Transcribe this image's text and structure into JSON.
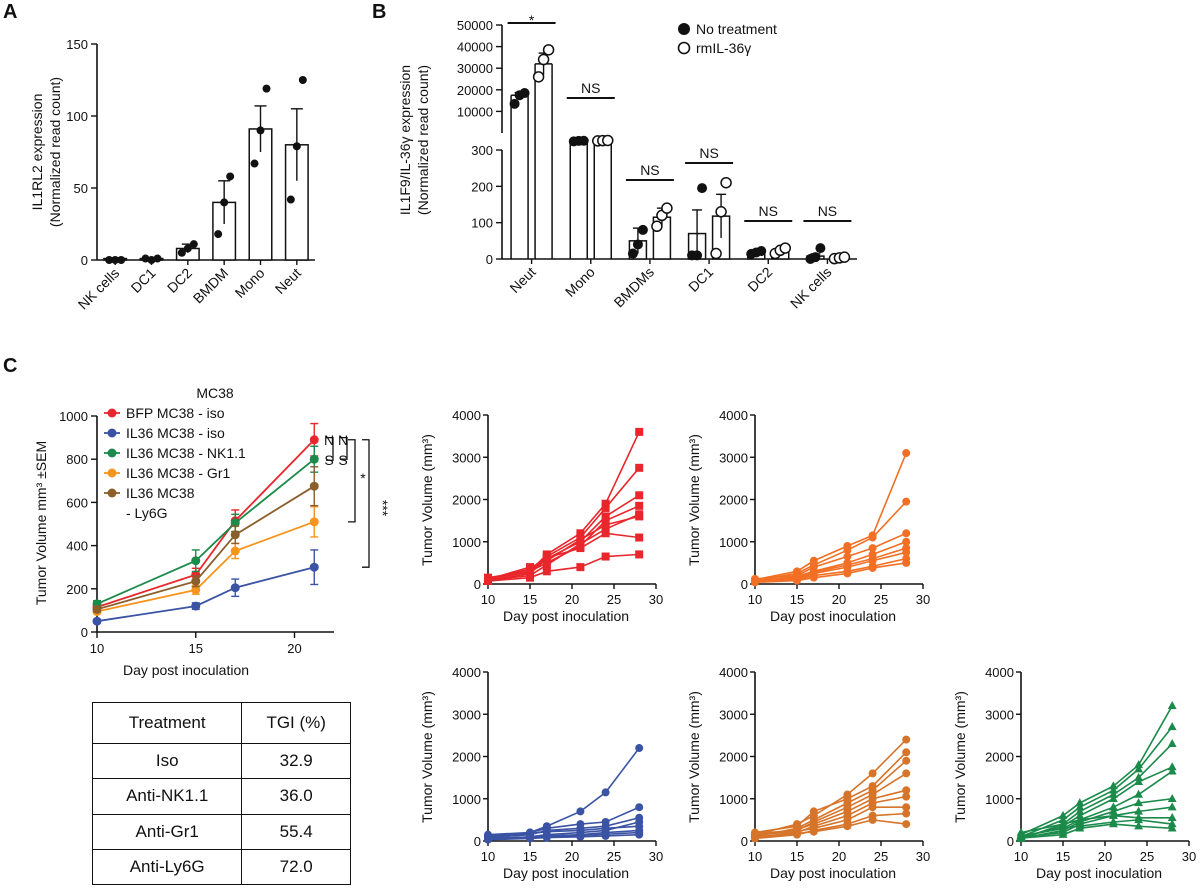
{
  "panels": {
    "a": "A",
    "b": "B",
    "c": "C"
  },
  "chart_data": [
    {
      "id": "A",
      "type": "bar",
      "ylabel": "IL1RL2 expression\n(Normalized read count)",
      "categories": [
        "NK cells",
        "DC1",
        "DC2",
        "BMDM",
        "Mono",
        "Neut"
      ],
      "values": [
        1,
        1,
        8,
        40,
        91,
        80
      ],
      "errors": [
        0.5,
        0.5,
        3,
        15,
        16,
        25
      ],
      "points": [
        [
          0,
          0,
          0
        ],
        [
          1,
          0,
          1
        ],
        [
          5,
          8,
          11
        ],
        [
          18,
          40,
          58
        ],
        [
          67,
          90,
          119
        ],
        [
          42,
          79,
          125
        ]
      ],
      "ylim": [
        0,
        150
      ],
      "yticks": [
        0,
        50,
        100,
        150
      ]
    },
    {
      "id": "B",
      "type": "bar",
      "ylabel": "IL1F9/IL-36γ expression\n(Normalized read count)",
      "categories": [
        "Neut",
        "Mono",
        "BMDMs",
        "DC1",
        "DC2",
        "NK cells"
      ],
      "legend": [
        "No treatment",
        "rmIL-36γ"
      ],
      "series": [
        {
          "values": [
            17500,
            4800,
            50,
            70,
            18,
            8
          ],
          "errors": [
            1200,
            300,
            35,
            65,
            4,
            6
          ],
          "points": [
            [
              13500,
              17500,
              18500
            ],
            [
              2600,
              4800,
              4900
            ],
            [
              15,
              40,
              80
            ],
            [
              10,
              10,
              195
            ],
            [
              14,
              18,
              22
            ],
            [
              0,
              5,
              30
            ]
          ]
        },
        {
          "values": [
            32000,
            5300,
            115,
            118,
            22,
            3
          ],
          "errors": [
            5000,
            700,
            25,
            60,
            5,
            2
          ],
          "points": [
            [
              26000,
              34000,
              38500
            ],
            [
              4500,
              5500,
              6200
            ],
            [
              90,
              120,
              140
            ],
            [
              15,
              130,
              210
            ],
            [
              15,
              24,
              30
            ],
            [
              1,
              3,
              5
            ]
          ]
        }
      ],
      "significance": [
        "*",
        "NS",
        "NS",
        "NS",
        "NS",
        "NS"
      ],
      "yticks_low": [
        0,
        100,
        200,
        300
      ],
      "yticks_high": [
        10000,
        20000,
        30000,
        40000,
        50000
      ]
    },
    {
      "id": "C-summary",
      "type": "line",
      "title": "MC38",
      "xlabel": "Day post inoculation",
      "ylabel": "Tumor Volume mm³  ±SEM",
      "x": [
        10,
        15,
        17,
        21
      ],
      "xticks": [
        10,
        15,
        20
      ],
      "yticks": [
        0,
        200,
        400,
        600,
        800,
        1000
      ],
      "xlim": [
        10,
        22
      ],
      "ylim": [
        0,
        1000
      ],
      "series": [
        {
          "name": "BFP MC38 - iso",
          "color": "#e8262b",
          "values": [
            115,
            265,
            515,
            890
          ],
          "errors": [
            15,
            30,
            50,
            75
          ]
        },
        {
          "name": "IL36 MC38 - iso",
          "color": "#3a53a4",
          "values": [
            50,
            120,
            205,
            300
          ],
          "errors": [
            8,
            15,
            40,
            80
          ]
        },
        {
          "name": "IL36 MC38 - NK1.1",
          "color": "#1b8a4a",
          "values": [
            130,
            330,
            505,
            800
          ],
          "errors": [
            15,
            50,
            40,
            60
          ]
        },
        {
          "name": "IL36 MC38 - Gr1",
          "color": "#f7941d",
          "values": [
            95,
            195,
            375,
            510
          ],
          "errors": [
            10,
            20,
            35,
            70
          ]
        },
        {
          "name": "IL36 MC38\n- Ly6G",
          "color": "#8b5e2b",
          "values": [
            105,
            235,
            450,
            675
          ],
          "errors": [
            12,
            25,
            40,
            90
          ]
        }
      ],
      "significance": [
        "NS",
        "NS",
        "*",
        "***"
      ]
    },
    {
      "id": "C-individual",
      "type": "line",
      "xlabel": "Day post inoculation",
      "ylabel": "Tumor Volume (mm³)",
      "xticks": [
        10,
        15,
        20,
        25,
        30
      ],
      "yticks": [
        0,
        1000,
        2000,
        3000,
        4000
      ],
      "xlim": [
        10,
        30
      ],
      "ylim": [
        0,
        4000
      ],
      "x": [
        10,
        15,
        17,
        21,
        24,
        28
      ],
      "panels": [
        {
          "group": "BFP MC38 - iso",
          "color": "#e8262b",
          "marker": "square",
          "curves": [
            [
              100,
              300,
              700,
              1200,
              1900,
              3600
            ],
            [
              120,
              350,
              650,
              1100,
              1800,
              2750
            ],
            [
              80,
              250,
              600,
              1000,
              1600,
              2100
            ],
            [
              150,
              300,
              500,
              900,
              1500,
              1850
            ],
            [
              90,
              200,
              450,
              950,
              1300,
              1650
            ],
            [
              110,
              400,
              550,
              1050,
              1400,
              1600
            ],
            [
              130,
              280,
              620,
              850,
              1200,
              1100
            ],
            [
              70,
              150,
              300,
              400,
              650,
              700
            ]
          ]
        },
        {
          "group": "IL36 MC38 - iso",
          "color": "#f26f24",
          "marker": "circle",
          "curves": [
            [
              100,
              300,
              550,
              900,
              1150,
              3100
            ],
            [
              80,
              250,
              450,
              800,
              1100,
              1950
            ],
            [
              120,
              200,
              400,
              650,
              850,
              1200
            ],
            [
              60,
              180,
              300,
              500,
              700,
              1000
            ],
            [
              90,
              150,
              280,
              450,
              600,
              850
            ],
            [
              70,
              120,
              250,
              400,
              550,
              750
            ],
            [
              50,
              100,
              200,
              300,
              420,
              600
            ],
            [
              40,
              80,
              150,
              250,
              380,
              500
            ]
          ]
        },
        {
          "group": "IL36 MC38 - NK1.1",
          "color": "#3a53a4",
          "marker": "circle",
          "curves": [
            [
              150,
              200,
              350,
              700,
              1150,
              2200
            ],
            [
              100,
              200,
              300,
              400,
              450,
              800
            ],
            [
              80,
              150,
              250,
              300,
              350,
              550
            ],
            [
              50,
              100,
              150,
              200,
              250,
              450
            ],
            [
              120,
              180,
              220,
              250,
              300,
              350
            ],
            [
              60,
              90,
              120,
              150,
              200,
              250
            ],
            [
              40,
              70,
              100,
              130,
              160,
              200
            ],
            [
              30,
              60,
              80,
              100,
              120,
              150
            ]
          ]
        },
        {
          "group": "IL36 MC38 - Gr1",
          "color": "#d6742a",
          "marker": "circle",
          "curves": [
            [
              150,
              400,
              600,
              1100,
              1600,
              2400
            ],
            [
              200,
              350,
              700,
              1000,
              1300,
              2100
            ],
            [
              100,
              300,
              500,
              900,
              1200,
              1900
            ],
            [
              180,
              250,
              450,
              800,
              1100,
              1600
            ],
            [
              120,
              280,
              400,
              700,
              1000,
              1200
            ],
            [
              90,
              200,
              350,
              600,
              900,
              1050
            ],
            [
              140,
              230,
              300,
              500,
              800,
              800
            ],
            [
              60,
              150,
              250,
              400,
              600,
              650
            ],
            [
              80,
              180,
              220,
              350,
              500,
              400
            ]
          ]
        },
        {
          "group": "IL36 MC38 - Ly6G",
          "color": "#1b8a4a",
          "marker": "triangle",
          "curves": [
            [
              150,
              600,
              900,
              1300,
              1800,
              3200
            ],
            [
              100,
              500,
              800,
              1200,
              1700,
              2700
            ],
            [
              200,
              400,
              700,
              1100,
              1500,
              2300
            ],
            [
              80,
              350,
              600,
              1000,
              1400,
              1750
            ],
            [
              120,
              300,
              500,
              800,
              1100,
              1650
            ],
            [
              60,
              250,
              450,
              700,
              900,
              1000
            ],
            [
              90,
              200,
              400,
              600,
              700,
              800
            ],
            [
              50,
              400,
              500,
              600,
              550,
              550
            ],
            [
              110,
              300,
              350,
              450,
              500,
              400
            ],
            [
              70,
              150,
              300,
              400,
              350,
              300
            ]
          ]
        }
      ]
    }
  ],
  "table": {
    "headers": [
      "Treatment",
      "TGI (%)"
    ],
    "rows": [
      [
        "Iso",
        "32.9"
      ],
      [
        "Anti-NK1.1",
        "36.0"
      ],
      [
        "Anti-Gr1",
        "55.4"
      ],
      [
        "Anti-Ly6G",
        "72.0"
      ]
    ]
  }
}
